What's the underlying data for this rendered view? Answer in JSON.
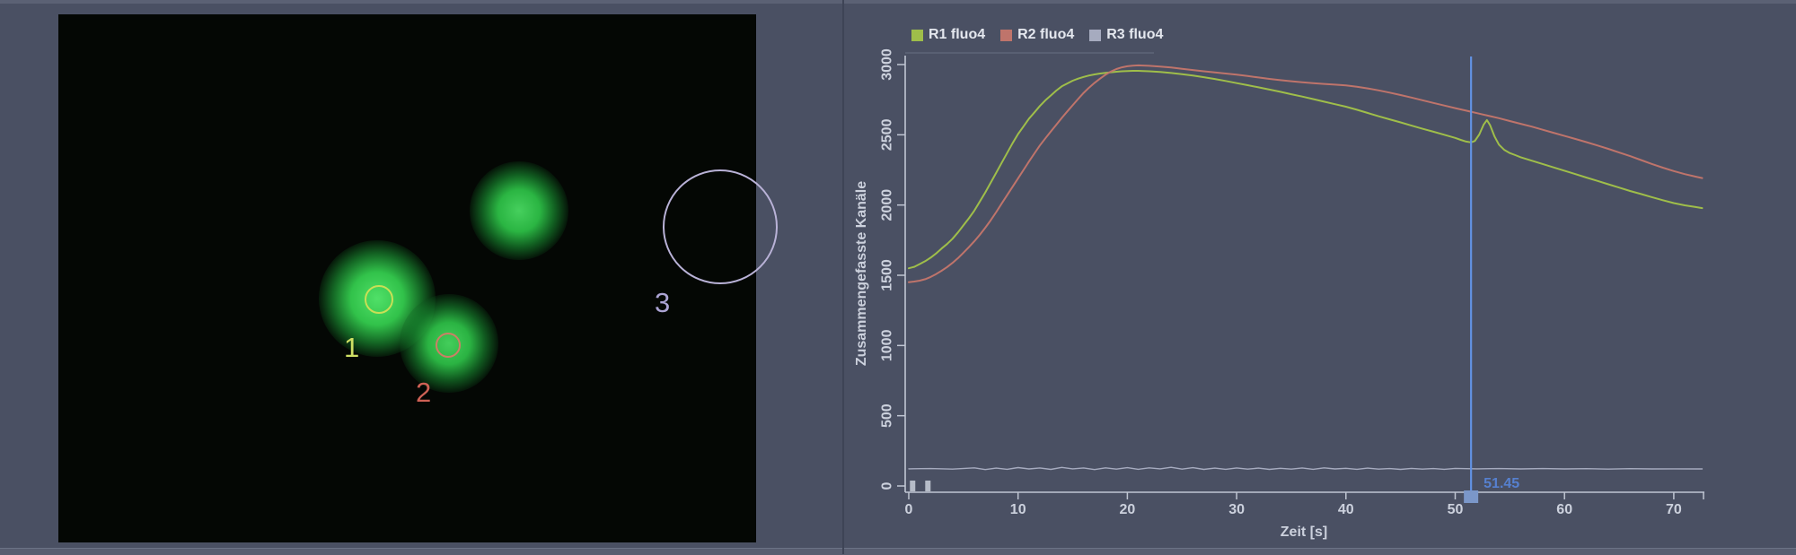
{
  "window": {
    "background_color": "#4a5063",
    "image_panel_background": "#040704"
  },
  "image_panel": {
    "description": "fluorescence-microscopy-view",
    "rois": [
      {
        "label": "1",
        "ring_color": "#c9df55",
        "label_color": "#cfe065"
      },
      {
        "label": "2",
        "ring_color": "#cd7f66",
        "label_color": "#ce6155"
      },
      {
        "label": "3",
        "ring_color": "#b9b2d7",
        "label_color": "#aca4d4"
      }
    ]
  },
  "chart": {
    "cursor_readout": "51.45",
    "accent_blue": "#6292e2",
    "axis_color": "#c0c6d3",
    "text_color": "#ccd1dd"
  },
  "chart_data": {
    "type": "line",
    "title": "",
    "xlabel": "Zeit [s]",
    "ylabel": "Zusammengefasste Kanäle",
    "xlim": [
      0,
      73
    ],
    "ylim": [
      0,
      3000
    ],
    "xticks": [
      0,
      10,
      20,
      30,
      40,
      50,
      60,
      70
    ],
    "yticks": [
      0,
      500,
      1000,
      1500,
      2000,
      2500,
      3000
    ],
    "grid": false,
    "legend_position": "top-left",
    "cursor": {
      "time": 51.45,
      "label": "51.45"
    },
    "event_markers": [
      0.35,
      1.75
    ],
    "series": [
      {
        "name": "R1 fluo4",
        "color": "#9fbe4a",
        "points": [
          [
            0,
            1550
          ],
          [
            0.5,
            1560
          ],
          [
            1,
            1580
          ],
          [
            1.5,
            1600
          ],
          [
            2,
            1625
          ],
          [
            2.5,
            1655
          ],
          [
            3,
            1690
          ],
          [
            3.5,
            1722
          ],
          [
            4,
            1760
          ],
          [
            4.5,
            1805
          ],
          [
            5,
            1855
          ],
          [
            5.5,
            1905
          ],
          [
            6,
            1960
          ],
          [
            6.5,
            2025
          ],
          [
            7,
            2090
          ],
          [
            7.5,
            2160
          ],
          [
            8,
            2230
          ],
          [
            8.5,
            2300
          ],
          [
            9,
            2370
          ],
          [
            9.5,
            2440
          ],
          [
            10,
            2505
          ],
          [
            10.5,
            2560
          ],
          [
            11,
            2615
          ],
          [
            11.5,
            2660
          ],
          [
            12,
            2705
          ],
          [
            12.5,
            2745
          ],
          [
            13,
            2780
          ],
          [
            13.5,
            2815
          ],
          [
            14,
            2845
          ],
          [
            14.5,
            2865
          ],
          [
            15,
            2885
          ],
          [
            15.5,
            2900
          ],
          [
            16,
            2912
          ],
          [
            16.5,
            2922
          ],
          [
            17,
            2930
          ],
          [
            17.5,
            2936
          ],
          [
            18,
            2941
          ],
          [
            18.5,
            2945
          ],
          [
            19,
            2949
          ],
          [
            19.5,
            2952
          ],
          [
            20,
            2954
          ],
          [
            20.5,
            2955
          ],
          [
            21,
            2955
          ],
          [
            22,
            2952
          ],
          [
            23,
            2947
          ],
          [
            24,
            2940
          ],
          [
            25,
            2932
          ],
          [
            26,
            2922
          ],
          [
            27,
            2910
          ],
          [
            28,
            2897
          ],
          [
            29,
            2883
          ],
          [
            30,
            2868
          ],
          [
            31,
            2853
          ],
          [
            32,
            2838
          ],
          [
            33,
            2822
          ],
          [
            34,
            2806
          ],
          [
            35,
            2789
          ],
          [
            36,
            2772
          ],
          [
            37,
            2754
          ],
          [
            38,
            2736
          ],
          [
            39,
            2718
          ],
          [
            40,
            2700
          ],
          [
            41,
            2678
          ],
          [
            42,
            2655
          ],
          [
            43,
            2632
          ],
          [
            44,
            2610
          ],
          [
            45,
            2588
          ],
          [
            46,
            2565
          ],
          [
            47,
            2543
          ],
          [
            48,
            2522
          ],
          [
            49,
            2500
          ],
          [
            50,
            2478
          ],
          [
            50.5,
            2464
          ],
          [
            51,
            2452
          ],
          [
            51.45,
            2446
          ],
          [
            51.8,
            2456
          ],
          [
            52.2,
            2502
          ],
          [
            52.6,
            2572
          ],
          [
            52.9,
            2605
          ],
          [
            53.2,
            2568
          ],
          [
            53.6,
            2488
          ],
          [
            54,
            2430
          ],
          [
            54.5,
            2392
          ],
          [
            55,
            2370
          ],
          [
            55.5,
            2355
          ],
          [
            56,
            2340
          ],
          [
            57,
            2316
          ],
          [
            58,
            2292
          ],
          [
            59,
            2268
          ],
          [
            60,
            2244
          ],
          [
            61,
            2220
          ],
          [
            62,
            2196
          ],
          [
            63,
            2172
          ],
          [
            64,
            2148
          ],
          [
            65,
            2124
          ],
          [
            66,
            2100
          ],
          [
            67,
            2078
          ],
          [
            68,
            2056
          ],
          [
            69,
            2034
          ],
          [
            70,
            2014
          ],
          [
            71,
            1998
          ],
          [
            72,
            1986
          ],
          [
            72.6,
            1978
          ]
        ]
      },
      {
        "name": "R2 fluo4",
        "color": "#bf746b",
        "points": [
          [
            0,
            1450
          ],
          [
            0.5,
            1455
          ],
          [
            1,
            1462
          ],
          [
            1.5,
            1472
          ],
          [
            2,
            1488
          ],
          [
            2.5,
            1508
          ],
          [
            3,
            1532
          ],
          [
            3.5,
            1558
          ],
          [
            4,
            1588
          ],
          [
            4.5,
            1622
          ],
          [
            5,
            1660
          ],
          [
            5.5,
            1700
          ],
          [
            6,
            1742
          ],
          [
            6.5,
            1788
          ],
          [
            7,
            1838
          ],
          [
            7.5,
            1892
          ],
          [
            8,
            1950
          ],
          [
            8.5,
            2010
          ],
          [
            9,
            2070
          ],
          [
            9.5,
            2130
          ],
          [
            10,
            2190
          ],
          [
            10.5,
            2250
          ],
          [
            11,
            2310
          ],
          [
            11.5,
            2368
          ],
          [
            12,
            2424
          ],
          [
            12.5,
            2475
          ],
          [
            13,
            2524
          ],
          [
            13.5,
            2572
          ],
          [
            14,
            2620
          ],
          [
            14.5,
            2666
          ],
          [
            15,
            2710
          ],
          [
            15.5,
            2755
          ],
          [
            16,
            2798
          ],
          [
            16.5,
            2836
          ],
          [
            17,
            2870
          ],
          [
            17.5,
            2900
          ],
          [
            18,
            2928
          ],
          [
            18.5,
            2950
          ],
          [
            19,
            2968
          ],
          [
            19.5,
            2980
          ],
          [
            20,
            2988
          ],
          [
            20.5,
            2992
          ],
          [
            21,
            2994
          ],
          [
            22,
            2991
          ],
          [
            23,
            2986
          ],
          [
            24,
            2979
          ],
          [
            25,
            2970
          ],
          [
            26,
            2961
          ],
          [
            27,
            2952
          ],
          [
            28,
            2944
          ],
          [
            29,
            2936
          ],
          [
            30,
            2928
          ],
          [
            31,
            2918
          ],
          [
            32,
            2908
          ],
          [
            33,
            2898
          ],
          [
            34,
            2889
          ],
          [
            35,
            2881
          ],
          [
            36,
            2874
          ],
          [
            37,
            2868
          ],
          [
            38,
            2862
          ],
          [
            39,
            2857
          ],
          [
            40,
            2852
          ],
          [
            41,
            2842
          ],
          [
            42,
            2830
          ],
          [
            43,
            2816
          ],
          [
            44,
            2800
          ],
          [
            45,
            2783
          ],
          [
            46,
            2765
          ],
          [
            47,
            2746
          ],
          [
            48,
            2727
          ],
          [
            49,
            2708
          ],
          [
            50,
            2690
          ],
          [
            51,
            2672
          ],
          [
            51.45,
            2664
          ],
          [
            52,
            2654
          ],
          [
            53,
            2636
          ],
          [
            54,
            2618
          ],
          [
            55,
            2598
          ],
          [
            56,
            2578
          ],
          [
            57,
            2558
          ],
          [
            58,
            2536
          ],
          [
            59,
            2514
          ],
          [
            60,
            2492
          ],
          [
            61,
            2470
          ],
          [
            62,
            2448
          ],
          [
            63,
            2424
          ],
          [
            64,
            2400
          ],
          [
            65,
            2374
          ],
          [
            66,
            2348
          ],
          [
            67,
            2320
          ],
          [
            68,
            2292
          ],
          [
            69,
            2266
          ],
          [
            70,
            2242
          ],
          [
            71,
            2220
          ],
          [
            72,
            2202
          ],
          [
            72.6,
            2192
          ]
        ]
      },
      {
        "name": "R3 fluo4",
        "color": "#a6abbf",
        "points": [
          [
            0,
            122
          ],
          [
            2,
            124
          ],
          [
            4,
            120
          ],
          [
            6,
            129
          ],
          [
            7,
            117
          ],
          [
            8,
            127
          ],
          [
            9,
            119
          ],
          [
            10,
            131
          ],
          [
            11,
            121
          ],
          [
            12,
            128
          ],
          [
            13,
            118
          ],
          [
            14,
            132
          ],
          [
            15,
            122
          ],
          [
            16,
            128
          ],
          [
            17,
            117
          ],
          [
            18,
            129
          ],
          [
            19,
            120
          ],
          [
            20,
            130
          ],
          [
            21,
            119
          ],
          [
            22,
            129
          ],
          [
            23,
            122
          ],
          [
            24,
            133
          ],
          [
            25,
            120
          ],
          [
            26,
            130
          ],
          [
            27,
            118
          ],
          [
            28,
            127
          ],
          [
            29,
            119
          ],
          [
            30,
            128
          ],
          [
            31,
            120
          ],
          [
            32,
            127
          ],
          [
            33,
            118
          ],
          [
            34,
            126
          ],
          [
            35,
            120
          ],
          [
            36,
            128
          ],
          [
            37,
            119
          ],
          [
            38,
            129
          ],
          [
            39,
            121
          ],
          [
            40,
            126
          ],
          [
            41,
            119
          ],
          [
            42,
            127
          ],
          [
            43,
            120
          ],
          [
            44,
            124
          ],
          [
            45,
            118
          ],
          [
            46,
            125
          ],
          [
            47,
            120
          ],
          [
            48,
            124
          ],
          [
            49,
            119
          ],
          [
            50,
            125
          ],
          [
            52,
            122
          ],
          [
            54,
            124
          ],
          [
            56,
            121
          ],
          [
            58,
            124
          ],
          [
            60,
            121
          ],
          [
            62,
            123
          ],
          [
            64,
            120
          ],
          [
            66,
            123
          ],
          [
            68,
            121
          ],
          [
            70,
            122
          ],
          [
            72,
            121
          ],
          [
            72.6,
            121
          ]
        ]
      }
    ]
  }
}
